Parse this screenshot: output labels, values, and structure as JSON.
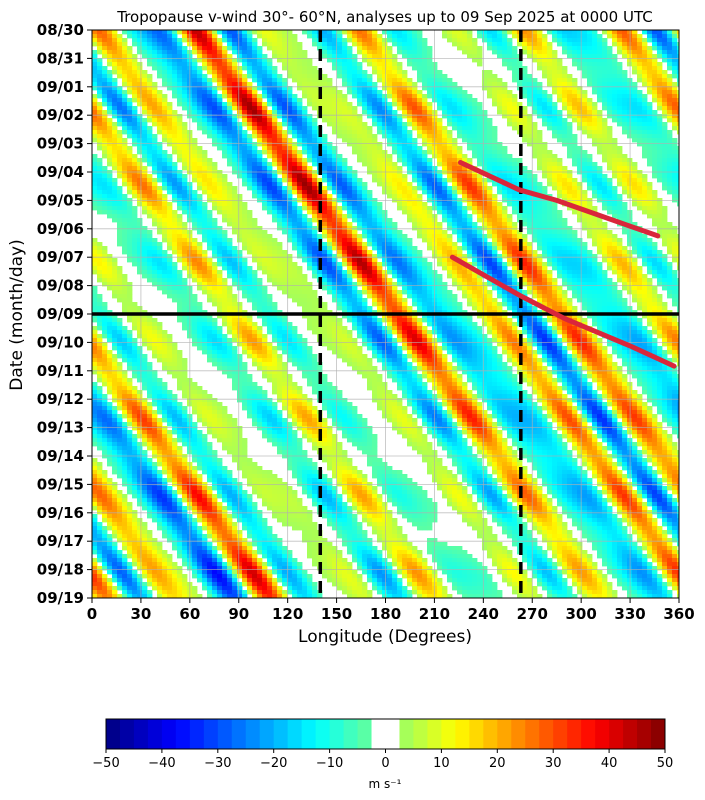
{
  "chart_data": {
    "type": "heatmap",
    "title": "Tropopause v-wind 30°- 60°N, analyses up to 09 Sep 2025 at 0000 UTC",
    "xlabel": "Longitude (Degrees)",
    "ylabel": "Date (month/day)",
    "xlim": [
      0,
      360
    ],
    "x_ticks": [
      0,
      30,
      60,
      90,
      120,
      150,
      180,
      210,
      240,
      270,
      300,
      330,
      360
    ],
    "y_ticks": [
      "08/30",
      "08/31",
      "09/01",
      "09/02",
      "09/03",
      "09/04",
      "09/05",
      "09/06",
      "09/07",
      "09/08",
      "09/09",
      "09/10",
      "09/11",
      "09/12",
      "09/13",
      "09/14",
      "09/15",
      "09/16",
      "09/17",
      "09/18",
      "09/19"
    ],
    "grid": true,
    "analysis_line_date": "09/09",
    "vertical_dashed_lines_lon": [
      140,
      263
    ],
    "red_trend_lines": [
      {
        "points": [
          [
            226,
            "09/03 16h"
          ],
          [
            262,
            "09/04 15h"
          ],
          [
            285,
            "09/05 00h"
          ],
          [
            347,
            "09/06 06h"
          ]
        ]
      },
      {
        "points": [
          [
            221,
            "09/07 00h"
          ],
          [
            262,
            "09/08 08h"
          ],
          [
            290,
            "09/09 04h"
          ],
          [
            330,
            "09/10 03h"
          ],
          [
            357,
            "09/10 20h"
          ]
        ]
      }
    ],
    "colorbar": {
      "ticks": [
        -50,
        -40,
        -30,
        -20,
        -10,
        0,
        10,
        20,
        30,
        40,
        50
      ],
      "unit": "m s⁻¹",
      "zero_band": [
        -2.5,
        2.5
      ]
    }
  }
}
